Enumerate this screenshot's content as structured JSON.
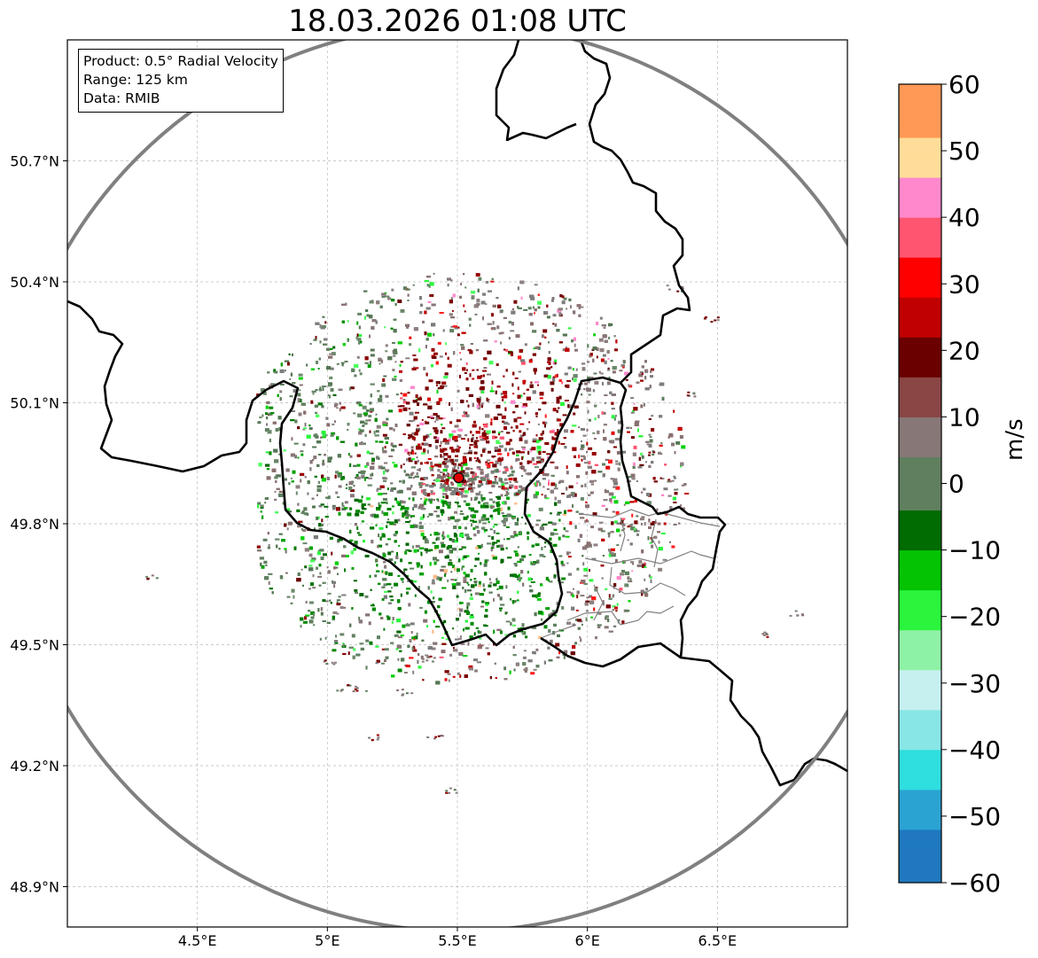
{
  "title": "18.03.2026 01:08 UTC",
  "info": {
    "product": "Product: 0.5° Radial Velocity",
    "range": "Range: 125 km",
    "data": "Data: RMIB"
  },
  "map": {
    "lon_range": [
      4.0,
      7.0
    ],
    "lat_range": [
      48.8,
      51.0
    ],
    "x_ticks": [
      "4.5°E",
      "5°E",
      "5.5°E",
      "6°E",
      "6.5°E"
    ],
    "x_tick_values": [
      4.5,
      5.0,
      5.5,
      6.0,
      6.5
    ],
    "y_ticks": [
      "48.9°N",
      "49.2°N",
      "49.5°N",
      "49.8°N",
      "50.1°N",
      "50.4°N",
      "50.7°N"
    ],
    "y_tick_values": [
      48.9,
      49.2,
      49.5,
      49.8,
      50.1,
      50.4,
      50.7
    ],
    "radar_site": {
      "lon": 5.505,
      "lat": 49.914
    },
    "range_ring_km": 125,
    "grid": true
  },
  "colorbar": {
    "label": "m/s",
    "min": -60,
    "max": 60,
    "ticks": [
      "−60",
      "−50",
      "−40",
      "−30",
      "−20",
      "−10",
      "0",
      "10",
      "20",
      "30",
      "40",
      "50",
      "60"
    ],
    "tick_values": [
      -60,
      -50,
      -40,
      -30,
      -20,
      -10,
      0,
      10,
      20,
      30,
      40,
      50,
      60
    ],
    "colors": [
      "#1f78c0",
      "#2aa3d2",
      "#2fdede",
      "#88e6e6",
      "#c6f0f0",
      "#8ef2a6",
      "#2af53c",
      "#03c303",
      "#016c01",
      "#5f7f5f",
      "#877777",
      "#8a4545",
      "#6a0000",
      "#c00000",
      "#ff0000",
      "#ff5570",
      "#ff88cc",
      "#ffdd99",
      "#ff9955"
    ]
  },
  "colors": {
    "outflow_strong": "#6a0000",
    "inflow_strong": "#007a00",
    "near_zero": "#877777",
    "range_ring": "#808080",
    "border": "#000000"
  }
}
